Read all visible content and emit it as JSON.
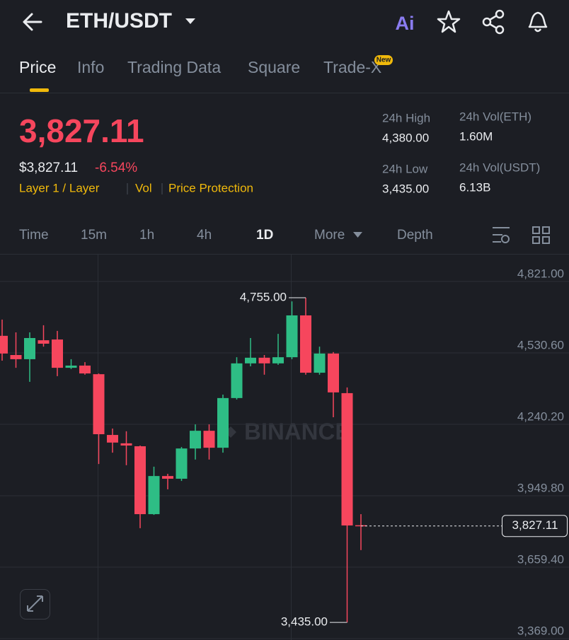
{
  "header": {
    "symbol": "ETH/USDT",
    "ai": "Ai"
  },
  "tabs": [
    "Price",
    "Info",
    "Trading Data",
    "Square",
    "Trade-X"
  ],
  "new_badge": "New",
  "summary": {
    "last_price": "3,827.11",
    "usd_price": "$3,827.11",
    "change": "-6.54%",
    "tags": [
      "Layer 1 / Layer",
      "Vol",
      "Price Protection"
    ],
    "stats": [
      {
        "label": "24h High",
        "value": "4,380.00"
      },
      {
        "label": "24h Vol(ETH)",
        "value": "1.60M"
      },
      {
        "label": "24h Low",
        "value": "3,435.00"
      },
      {
        "label": "24h Vol(USDT)",
        "value": "6.13B"
      }
    ]
  },
  "timeframes": [
    "Time",
    "15m",
    "1h",
    "4h",
    "1D",
    "More",
    "Depth"
  ],
  "chart": {
    "type": "candlestick",
    "watermark": "BINANCE",
    "up_color": "#2ebd85",
    "down_color": "#f6465d",
    "ylim": [
      3363.4,
      4930.25
    ],
    "yticks": [
      {
        "value": 4821,
        "label": "4,821.00"
      },
      {
        "value": 4530.6,
        "label": "4,530.60"
      },
      {
        "value": 4240.2,
        "label": "4,240.20"
      },
      {
        "value": 3949.8,
        "label": "3,949.80"
      },
      {
        "value": 3659.4,
        "label": "3,659.40"
      },
      {
        "value": 3369,
        "label": "3,369.00"
      }
    ],
    "candles": [
      {
        "open": 4600,
        "high": 4666,
        "low": 4499,
        "close": 4528
      },
      {
        "open": 4522,
        "high": 4614,
        "low": 4470,
        "close": 4505
      },
      {
        "open": 4505,
        "high": 4614,
        "low": 4413,
        "close": 4591
      },
      {
        "open": 4582,
        "high": 4643,
        "low": 4556,
        "close": 4568
      },
      {
        "open": 4585,
        "high": 4620,
        "low": 4436,
        "close": 4470
      },
      {
        "open": 4470,
        "high": 4505,
        "low": 4465,
        "close": 4479
      },
      {
        "open": 4479,
        "high": 4493,
        "low": 4442,
        "close": 4447
      },
      {
        "open": 4444,
        "high": 4447,
        "low": 4079,
        "close": 4200
      },
      {
        "open": 4197,
        "high": 4223,
        "low": 4125,
        "close": 4166
      },
      {
        "open": 4163,
        "high": 4212,
        "low": 4074,
        "close": 4154
      },
      {
        "open": 4151,
        "high": 4154,
        "low": 3818,
        "close": 3875
      },
      {
        "open": 3875,
        "high": 4068,
        "low": 3872,
        "close": 4030
      },
      {
        "open": 4030,
        "high": 4039,
        "low": 3976,
        "close": 4019
      },
      {
        "open": 4019,
        "high": 4148,
        "low": 4010,
        "close": 4142
      },
      {
        "open": 4142,
        "high": 4240,
        "low": 4097,
        "close": 4214
      },
      {
        "open": 4214,
        "high": 4240,
        "low": 4097,
        "close": 4145
      },
      {
        "open": 4145,
        "high": 4361,
        "low": 4125,
        "close": 4347
      },
      {
        "open": 4347,
        "high": 4513,
        "low": 4341,
        "close": 4488
      },
      {
        "open": 4488,
        "high": 4591,
        "low": 4476,
        "close": 4511
      },
      {
        "open": 4511,
        "high": 4522,
        "low": 4442,
        "close": 4488
      },
      {
        "open": 4488,
        "high": 4608,
        "low": 4482,
        "close": 4513
      },
      {
        "open": 4513,
        "high": 4740,
        "low": 4505,
        "close": 4683
      },
      {
        "open": 4683,
        "high": 4755,
        "low": 4442,
        "close": 4450
      },
      {
        "open": 4450,
        "high": 4556,
        "low": 4442,
        "close": 4528
      },
      {
        "open": 4528,
        "high": 4534,
        "low": 4269,
        "close": 4370
      },
      {
        "open": 4367,
        "high": 4390,
        "low": 3435,
        "close": 3829
      },
      {
        "open": 3830,
        "high": 3875,
        "low": 3729,
        "close": 3827.11
      }
    ],
    "high_annotation": {
      "value": 4755,
      "label": "4,755.00"
    },
    "low_annotation": {
      "value": 3435,
      "label": "3,435.00"
    },
    "last_price": {
      "value": 3827.11,
      "label": "3,827.11"
    }
  }
}
